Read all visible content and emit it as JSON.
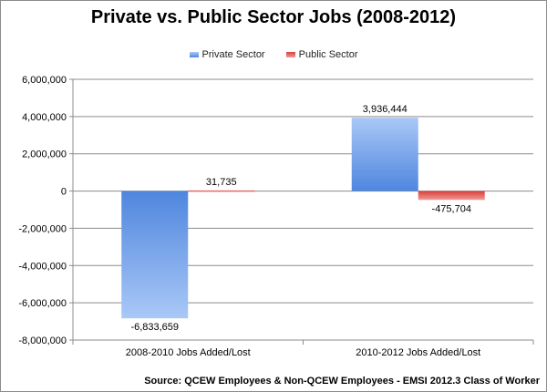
{
  "chart_data": {
    "type": "bar",
    "title": "Private vs. Public Sector Jobs (2008-2012)",
    "categories": [
      "2008-2010 Jobs Added/Lost",
      "2010-2012 Jobs Added/Lost"
    ],
    "series": [
      {
        "name": "Private Sector",
        "values": [
          -6833659,
          3936444
        ],
        "labels": [
          "-6,833,659",
          "3,936,444"
        ],
        "color": "#6f9fe6"
      },
      {
        "name": "Public Sector",
        "values": [
          31735,
          -475704
        ],
        "labels": [
          "31,735",
          "-475,704"
        ],
        "color": "#e05a55"
      }
    ],
    "ylim": [
      -8000000,
      6000000
    ],
    "yticks": [
      6000000,
      4000000,
      2000000,
      0,
      -2000000,
      -4000000,
      -6000000,
      -8000000
    ],
    "ytick_labels": [
      "6,000,000",
      "4,000,000",
      "2,000,000",
      "0",
      "-2,000,000",
      "-4,000,000",
      "-6,000,000",
      "-8,000,000"
    ],
    "grid": true,
    "legend": "top-center",
    "source": "Source: QCEW Employees & Non-QCEW Employees - EMSI 2012.3 Class of Worker"
  }
}
